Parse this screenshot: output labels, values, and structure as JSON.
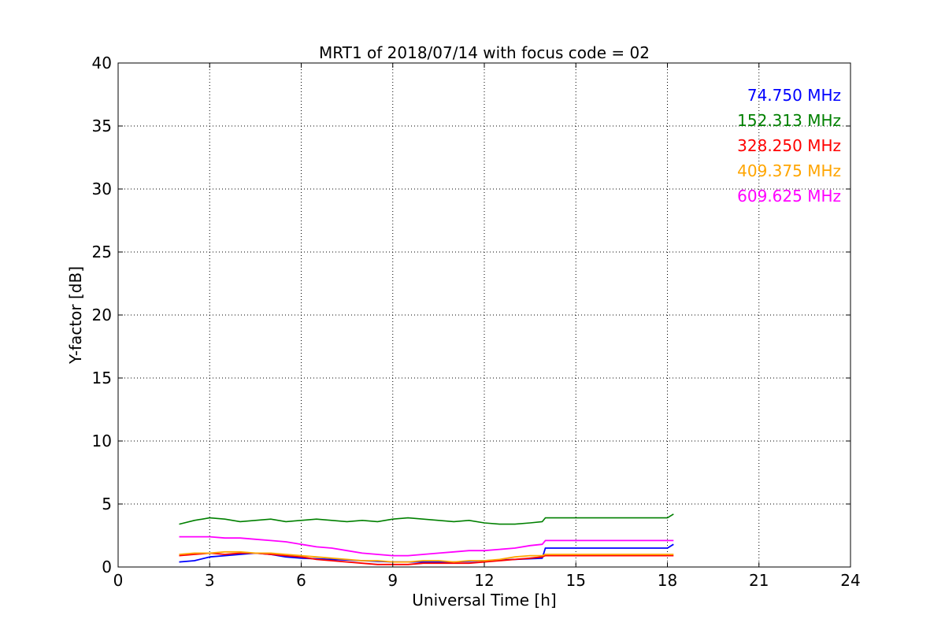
{
  "chart_data": {
    "type": "line",
    "title": "MRT1 of 2018/07/14 with focus code = 02",
    "xlabel": "Universal Time [h]",
    "ylabel": "Y-factor [dB]",
    "xlim": [
      0,
      24
    ],
    "ylim": [
      0,
      40
    ],
    "xticks": [
      0,
      3,
      6,
      9,
      12,
      15,
      18,
      21,
      24
    ],
    "yticks": [
      0,
      5,
      10,
      15,
      20,
      25,
      30,
      35,
      40
    ],
    "grid": true,
    "legend_position": "top-right",
    "series": [
      {
        "name": "74.750 MHz",
        "color": "#0000ff",
        "x": [
          2.0,
          2.5,
          3.0,
          3.5,
          4.0,
          4.5,
          5.0,
          5.5,
          6.0,
          7.0,
          8.0,
          9.0,
          10.0,
          11.0,
          12.0,
          13.0,
          13.9,
          14.0,
          18.0,
          18.2
        ],
        "y": [
          0.4,
          0.5,
          0.8,
          0.9,
          1.0,
          1.1,
          1.0,
          0.8,
          0.7,
          0.6,
          0.5,
          0.4,
          0.4,
          0.4,
          0.5,
          0.6,
          0.7,
          1.5,
          1.5,
          1.8
        ]
      },
      {
        "name": "152.313 MHz",
        "color": "#008000",
        "x": [
          2.0,
          2.5,
          3.0,
          3.5,
          4.0,
          4.5,
          5.0,
          5.5,
          6.0,
          6.5,
          7.0,
          7.5,
          8.0,
          8.5,
          9.0,
          9.5,
          10.0,
          10.5,
          11.0,
          11.5,
          12.0,
          12.5,
          13.0,
          13.5,
          13.9,
          14.0,
          18.0,
          18.2
        ],
        "y": [
          3.4,
          3.7,
          3.9,
          3.8,
          3.6,
          3.7,
          3.8,
          3.6,
          3.7,
          3.8,
          3.7,
          3.6,
          3.7,
          3.6,
          3.8,
          3.9,
          3.8,
          3.7,
          3.6,
          3.7,
          3.5,
          3.4,
          3.4,
          3.5,
          3.6,
          3.9,
          3.9,
          4.2
        ]
      },
      {
        "name": "328.250 MHz",
        "color": "#ff0000",
        "x": [
          2.0,
          2.5,
          3.0,
          3.5,
          4.0,
          4.5,
          5.0,
          5.5,
          6.0,
          6.5,
          7.0,
          7.5,
          8.0,
          8.5,
          9.0,
          9.5,
          10.0,
          10.5,
          11.0,
          11.5,
          12.0,
          12.5,
          13.0,
          13.5,
          13.9,
          14.0,
          18.0,
          18.2
        ],
        "y": [
          0.9,
          1.0,
          1.1,
          1.0,
          1.1,
          1.1,
          1.0,
          0.9,
          0.8,
          0.6,
          0.5,
          0.4,
          0.3,
          0.2,
          0.2,
          0.2,
          0.3,
          0.3,
          0.3,
          0.3,
          0.4,
          0.5,
          0.6,
          0.7,
          0.8,
          0.9,
          0.9,
          0.9
        ]
      },
      {
        "name": "409.375 MHz",
        "color": "#ffa500",
        "x": [
          2.0,
          2.5,
          3.0,
          3.5,
          4.0,
          4.5,
          5.0,
          5.5,
          6.0,
          6.5,
          7.0,
          7.5,
          8.0,
          8.5,
          9.0,
          9.5,
          10.0,
          10.5,
          11.0,
          11.5,
          12.0,
          12.5,
          13.0,
          13.5,
          13.9,
          14.0,
          18.0,
          18.2
        ],
        "y": [
          1.0,
          1.1,
          1.1,
          1.2,
          1.2,
          1.1,
          1.1,
          1.0,
          0.9,
          0.8,
          0.7,
          0.6,
          0.5,
          0.5,
          0.4,
          0.4,
          0.5,
          0.5,
          0.4,
          0.5,
          0.5,
          0.6,
          0.8,
          0.9,
          0.9,
          1.0,
          1.0,
          1.0
        ]
      },
      {
        "name": "609.625 MHz",
        "color": "#ff00ff",
        "x": [
          2.0,
          2.5,
          3.0,
          3.5,
          4.0,
          4.5,
          5.0,
          5.5,
          6.0,
          6.5,
          7.0,
          7.5,
          8.0,
          8.5,
          9.0,
          9.5,
          10.0,
          10.5,
          11.0,
          11.5,
          12.0,
          12.5,
          13.0,
          13.5,
          13.9,
          14.0,
          18.0,
          18.2
        ],
        "y": [
          2.4,
          2.4,
          2.4,
          2.3,
          2.3,
          2.2,
          2.1,
          2.0,
          1.8,
          1.6,
          1.5,
          1.3,
          1.1,
          1.0,
          0.9,
          0.9,
          1.0,
          1.1,
          1.2,
          1.3,
          1.3,
          1.4,
          1.5,
          1.7,
          1.8,
          2.1,
          2.1,
          2.1
        ]
      }
    ]
  }
}
